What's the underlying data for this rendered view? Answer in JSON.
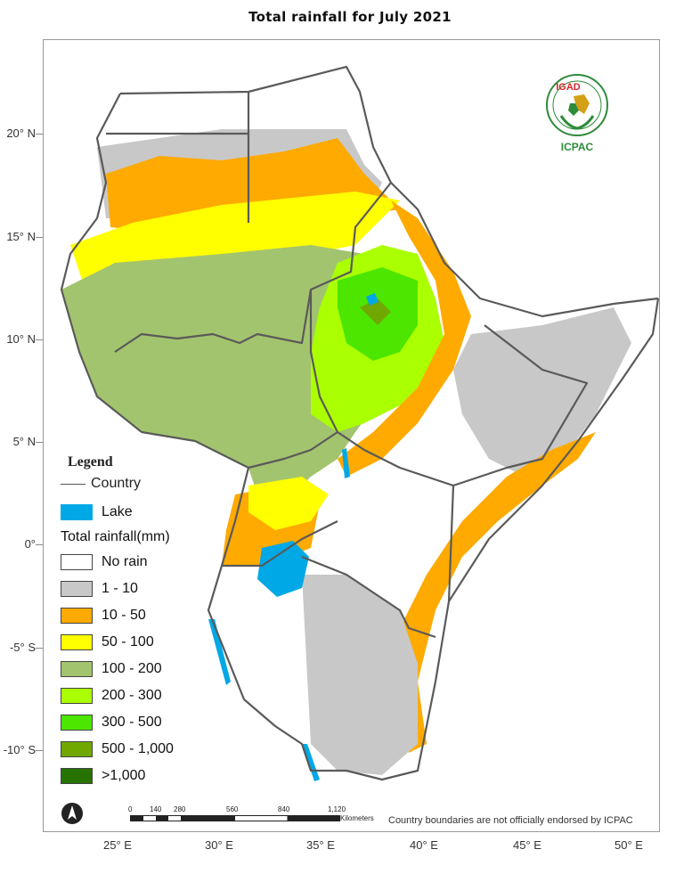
{
  "title": "Total rainfall for  July   2021",
  "lat_labels": [
    "20° N",
    "15° N",
    "10° N",
    "5° N",
    "0°",
    "-5° S",
    "-10° S"
  ],
  "lon_labels": [
    "25° E",
    "30° E",
    "35° E",
    "40° E",
    "45° E",
    "50° E"
  ],
  "legend": {
    "title": "Legend",
    "country_label": "Country",
    "lake_label": "Lake",
    "rainfall_title": "Total rainfall(mm)",
    "classes": [
      {
        "label": "No rain",
        "color": "#ffffff"
      },
      {
        "label": "1 - 10",
        "color": "#c8c8c8"
      },
      {
        "label": "10 - 50",
        "color": "#ffaa00"
      },
      {
        "label": "50 - 100",
        "color": "#ffff00"
      },
      {
        "label": "100 - 200",
        "color": "#a3c46e"
      },
      {
        "label": "200 - 300",
        "color": "#aaff00"
      },
      {
        "label": "300 - 500",
        "color": "#4ce600"
      },
      {
        "label": "500 - 1,000",
        "color": "#70a800"
      },
      {
        "label": ">1,000",
        "color": "#267300"
      }
    ],
    "lake_color": "#00a8e6"
  },
  "logo": {
    "top_text": "IGAD",
    "bottom_text": "ICPAC"
  },
  "scale": {
    "ticks": [
      "0",
      "140",
      "280",
      "560",
      "840",
      "1,120"
    ],
    "unit": "Kilometers"
  },
  "disclaimer": "Country boundaries are not officially endorsed by ICPAC"
}
